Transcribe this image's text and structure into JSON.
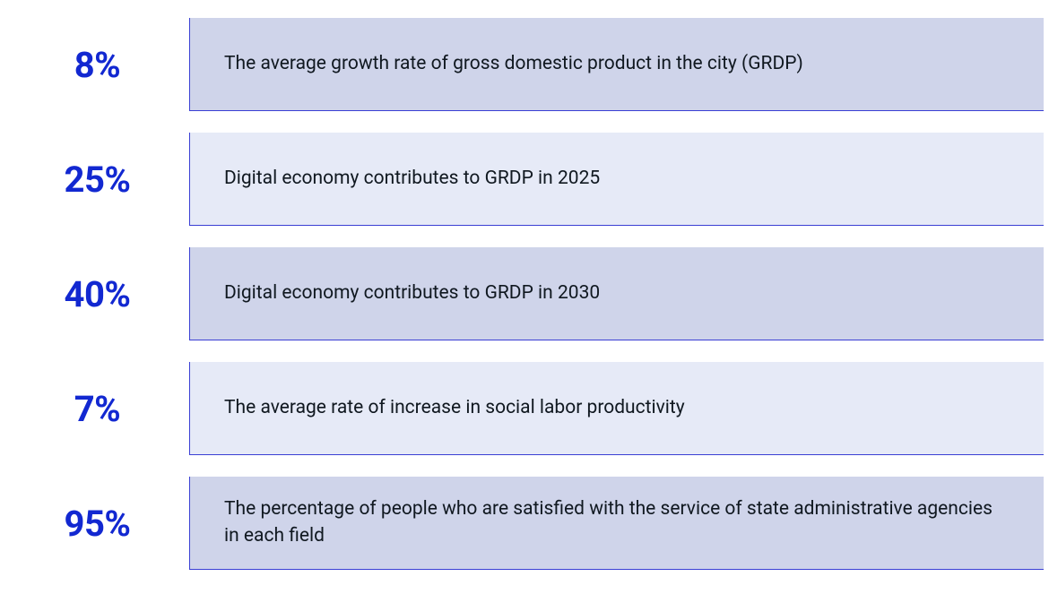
{
  "colors": {
    "stat_text": "#1228d1",
    "border": "#3a3fd4",
    "bg_dark": "#cfd4ea",
    "bg_light": "#e6eaf7",
    "desc_text": "#101820"
  },
  "rows": [
    {
      "value": "8%",
      "description": "The average growth rate of gross domestic product in the city (GRDP)",
      "shade": "dark"
    },
    {
      "value": "25%",
      "description": "Digital economy contributes to GRDP in 2025",
      "shade": "light"
    },
    {
      "value": "40%",
      "description": "Digital economy contributes to GRDP in 2030",
      "shade": "dark"
    },
    {
      "value": "7%",
      "description": "The average rate of increase in social labor productivity",
      "shade": "light"
    },
    {
      "value": "95%",
      "description": "The percentage of people who are satisfied with the service of state administrative agencies in each field",
      "shade": "dark"
    }
  ]
}
